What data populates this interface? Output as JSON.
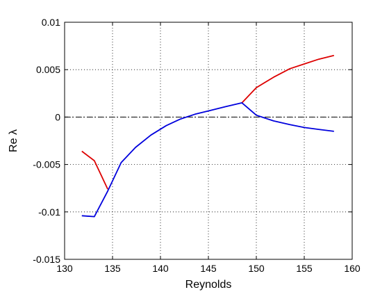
{
  "chart_data": {
    "type": "line",
    "xlabel": "Reynolds",
    "ylabel": "Re λ",
    "xlim": [
      130,
      160
    ],
    "ylim": [
      -0.015,
      0.01
    ],
    "grid": true,
    "x_ticks": [
      130,
      135,
      140,
      145,
      150,
      155,
      160
    ],
    "x_tick_labels": [
      "130",
      "135",
      "140",
      "145",
      "150",
      "155",
      "160"
    ],
    "y_ticks": [
      -0.015,
      -0.01,
      -0.005,
      0,
      0.005,
      0.01
    ],
    "y_tick_labels": [
      "-0.015",
      "-0.01",
      "-0.005",
      "0",
      "0.005",
      "0.01"
    ],
    "reference_line": {
      "y": 0,
      "style": "dash-dot",
      "color": "#000000"
    },
    "series": [
      {
        "color": "#dd0000",
        "points": [
          [
            131.8,
            -0.0036
          ],
          [
            133.1,
            -0.0046
          ],
          [
            134.5,
            -0.0076
          ]
        ]
      },
      {
        "color": "#dd0000",
        "points": [
          [
            148.5,
            0.0015
          ],
          [
            150.0,
            0.0031
          ],
          [
            151.8,
            0.0042
          ],
          [
            153.5,
            0.0051
          ],
          [
            155.0,
            0.0056
          ],
          [
            156.5,
            0.0061
          ],
          [
            158.1,
            0.0065
          ]
        ]
      },
      {
        "color": "#0000dd",
        "points": [
          [
            131.8,
            -0.0104
          ],
          [
            133.1,
            -0.0105
          ],
          [
            134.5,
            -0.0078
          ],
          [
            135.9,
            -0.0048
          ],
          [
            137.4,
            -0.0032
          ],
          [
            139.0,
            -0.0019
          ],
          [
            140.6,
            -0.0009
          ],
          [
            142.1,
            -0.0002
          ],
          [
            143.6,
            0.0003
          ],
          [
            145.2,
            0.0007
          ],
          [
            146.8,
            0.0011
          ],
          [
            148.5,
            0.0015
          ],
          [
            150.0,
            0.0002
          ],
          [
            151.8,
            -0.0004
          ],
          [
            153.5,
            -0.0008
          ],
          [
            155.0,
            -0.0011
          ],
          [
            156.5,
            -0.0013
          ],
          [
            158.1,
            -0.0015
          ]
        ]
      }
    ]
  }
}
